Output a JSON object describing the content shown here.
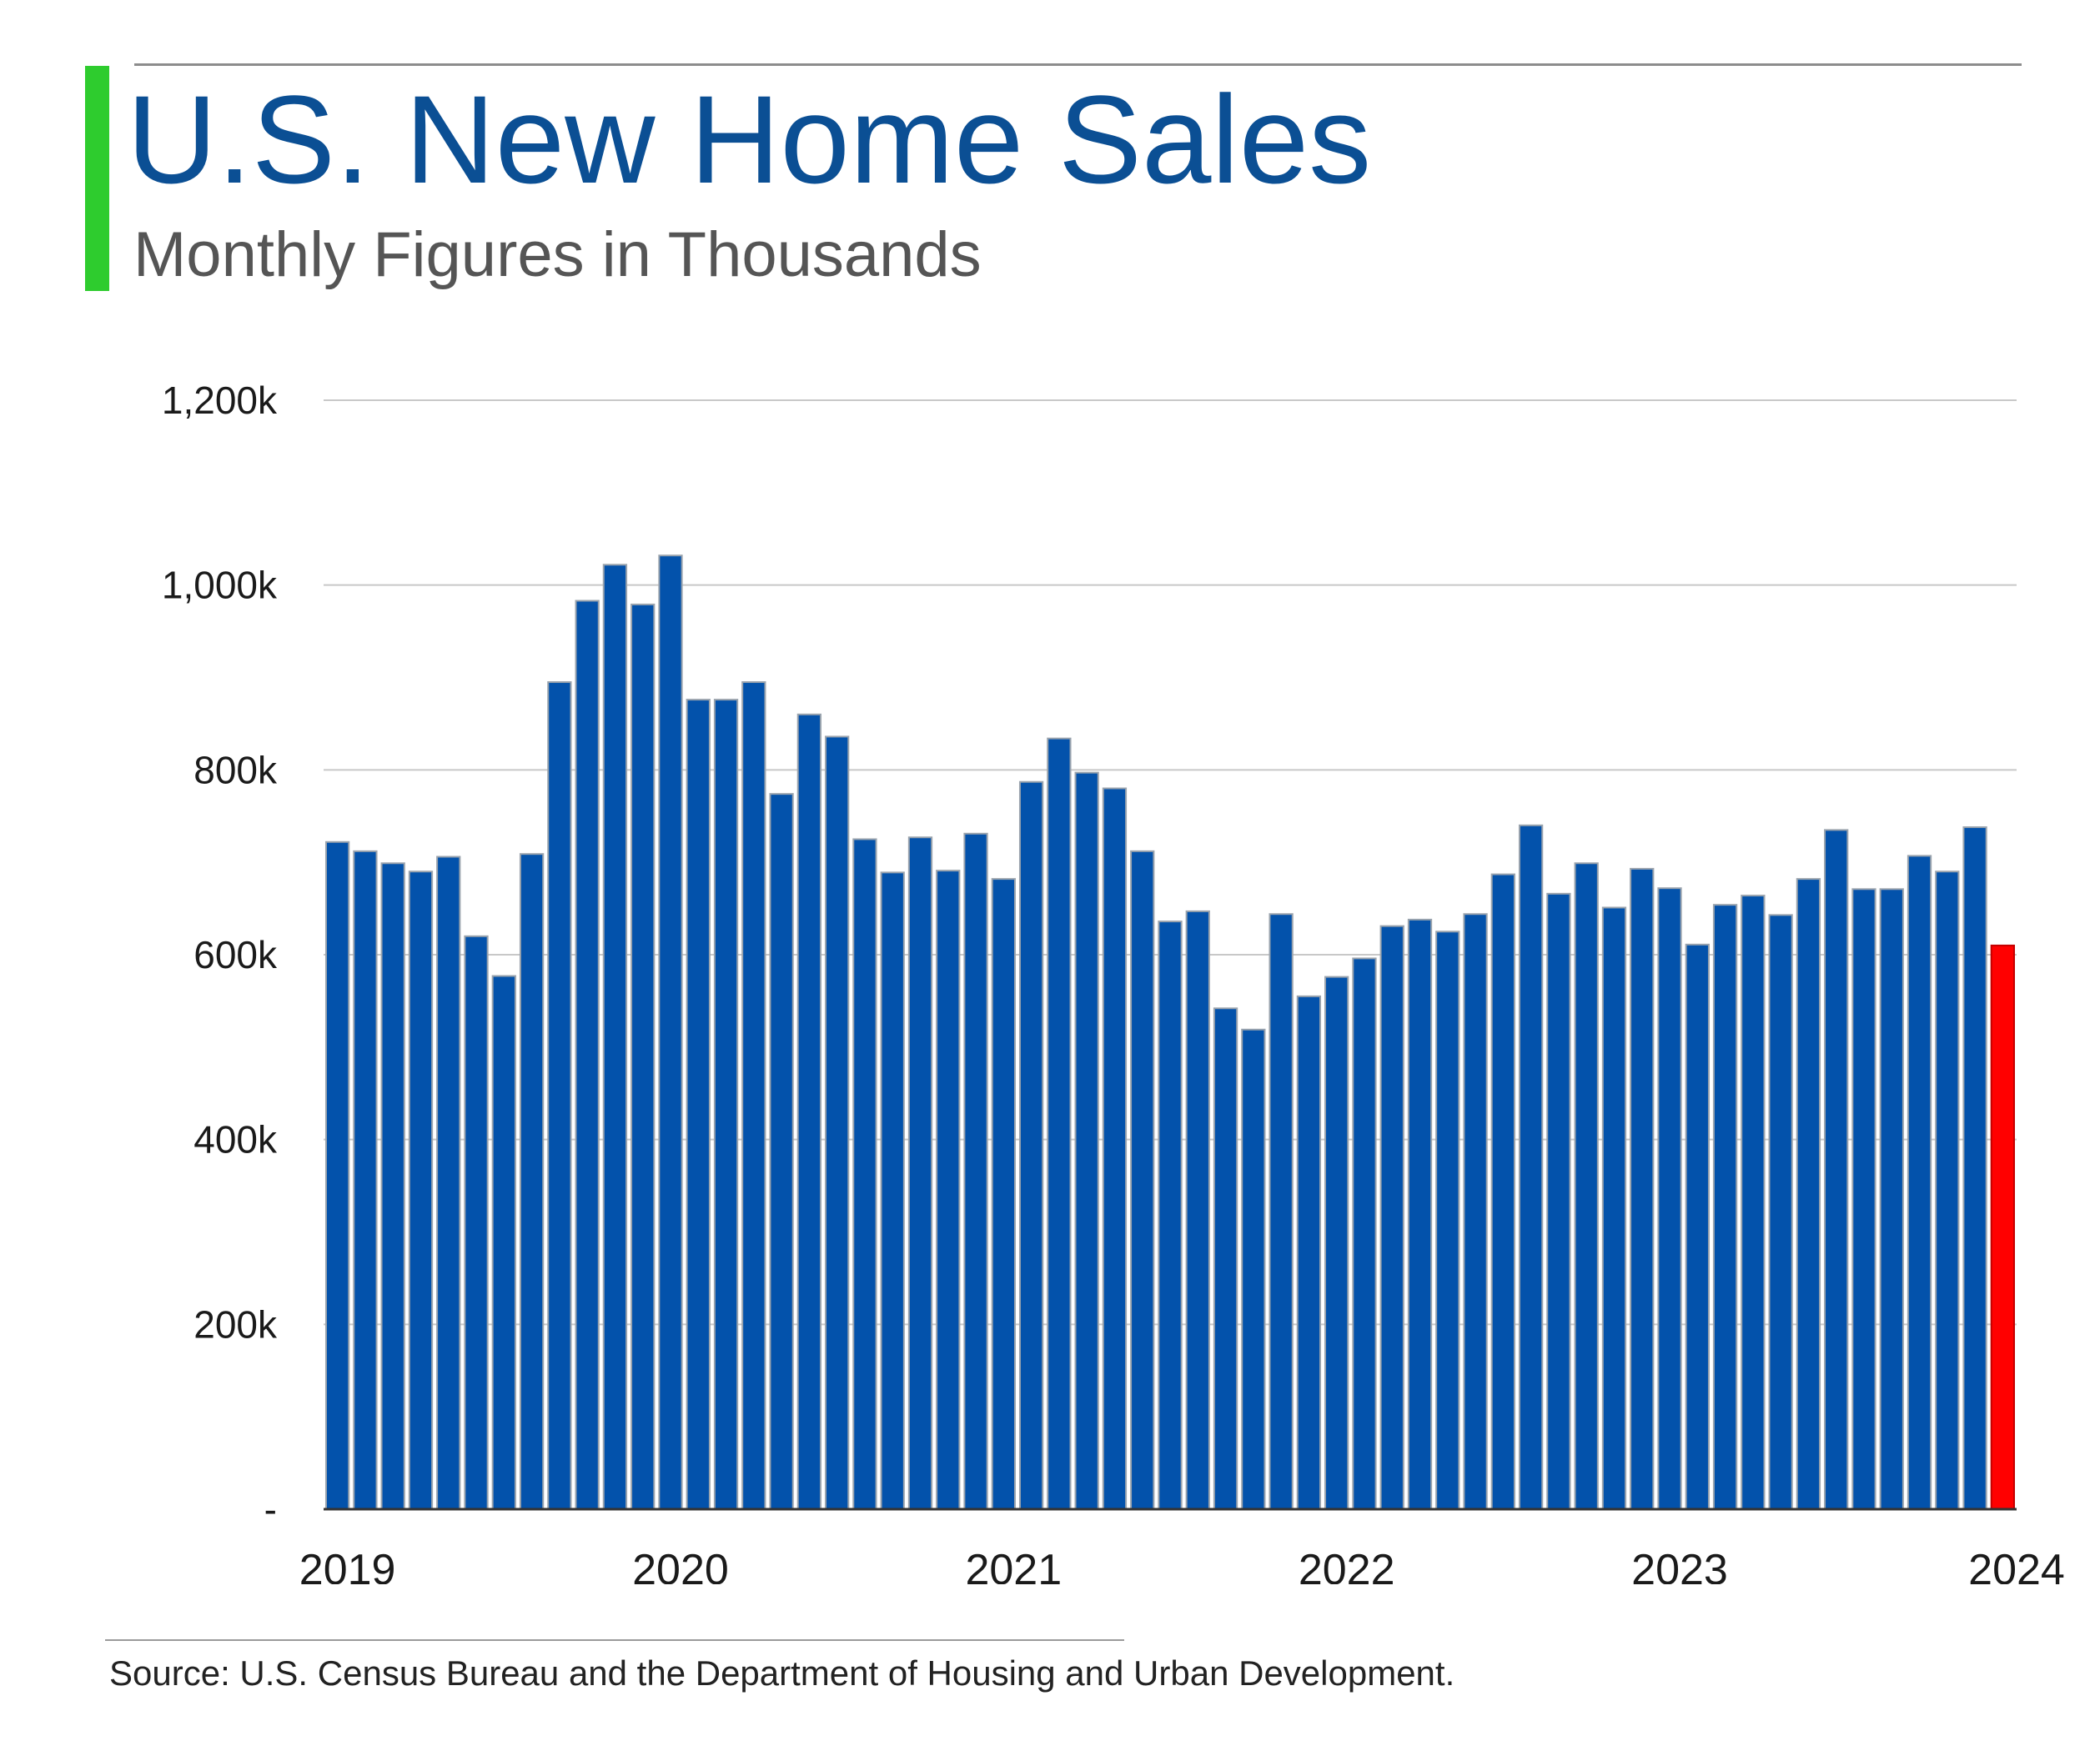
{
  "header": {
    "title": "U.S. New Home Sales",
    "subtitle": "Monthly Figures in Thousands",
    "title_color": "#0b4f94",
    "accent_color": "#2ecc2e"
  },
  "footer": {
    "source": "Source: U.S. Census Bureau and the Department of Housing and Urban Development."
  },
  "chart_data": {
    "type": "bar",
    "title": "U.S. New Home Sales",
    "subtitle": "Monthly Figures in Thousands",
    "xlabel": "",
    "ylabel": "",
    "ylim": [
      0,
      1200
    ],
    "y_ticks": [
      0,
      200,
      400,
      600,
      800,
      1000,
      1200
    ],
    "y_tick_labels": [
      "-",
      "200k",
      "400k",
      "600k",
      "800k",
      "1,000k",
      "1,200k"
    ],
    "x_tick_labels": [
      "2019",
      "2020",
      "2021",
      "2022",
      "2023",
      "2024"
    ],
    "x_tick_positions": [
      0,
      12,
      24,
      36,
      48,
      60
    ],
    "grid": true,
    "legend": "none",
    "colors": {
      "bar": "#0352ab",
      "bar_edge": "#9aa3ad",
      "highlight": "#ff0000",
      "grid": "#c8c8c8",
      "axis": "#333333"
    },
    "categories": [
      "2019-01",
      "2019-02",
      "2019-03",
      "2019-04",
      "2019-05",
      "2019-06",
      "2019-07",
      "2019-08",
      "2019-09",
      "2019-10",
      "2019-11",
      "2019-12",
      "2020-01",
      "2020-02",
      "2020-03",
      "2020-04",
      "2020-05",
      "2020-06",
      "2020-07",
      "2020-08",
      "2020-09",
      "2020-10",
      "2020-11",
      "2020-12",
      "2021-01",
      "2021-02",
      "2021-03",
      "2021-04",
      "2021-05",
      "2021-06",
      "2021-07",
      "2021-08",
      "2021-09",
      "2021-10",
      "2021-11",
      "2021-12",
      "2022-01",
      "2022-02",
      "2022-03",
      "2022-04",
      "2022-05",
      "2022-06",
      "2022-07",
      "2022-08",
      "2022-09",
      "2022-10",
      "2022-11",
      "2022-12",
      "2023-01",
      "2023-02",
      "2023-03",
      "2023-04",
      "2023-05",
      "2023-06",
      "2023-07",
      "2023-08",
      "2023-09",
      "2023-10",
      "2023-11",
      "2023-12",
      "2024-01"
    ],
    "values": [
      722,
      712,
      699,
      690,
      706,
      620,
      577,
      709,
      895,
      983,
      1022,
      979,
      1032,
      876,
      876,
      895,
      774,
      860,
      836,
      725,
      689,
      727,
      691,
      731,
      682,
      787,
      834,
      797,
      780,
      712,
      636,
      647,
      542,
      519,
      644,
      555,
      576,
      596,
      631,
      638,
      625,
      644,
      687,
      740,
      666,
      699,
      651,
      693,
      672,
      611,
      654,
      664,
      643,
      682,
      735,
      671,
      671,
      707,
      690,
      738,
      610
    ],
    "highlight_index": 60
  }
}
